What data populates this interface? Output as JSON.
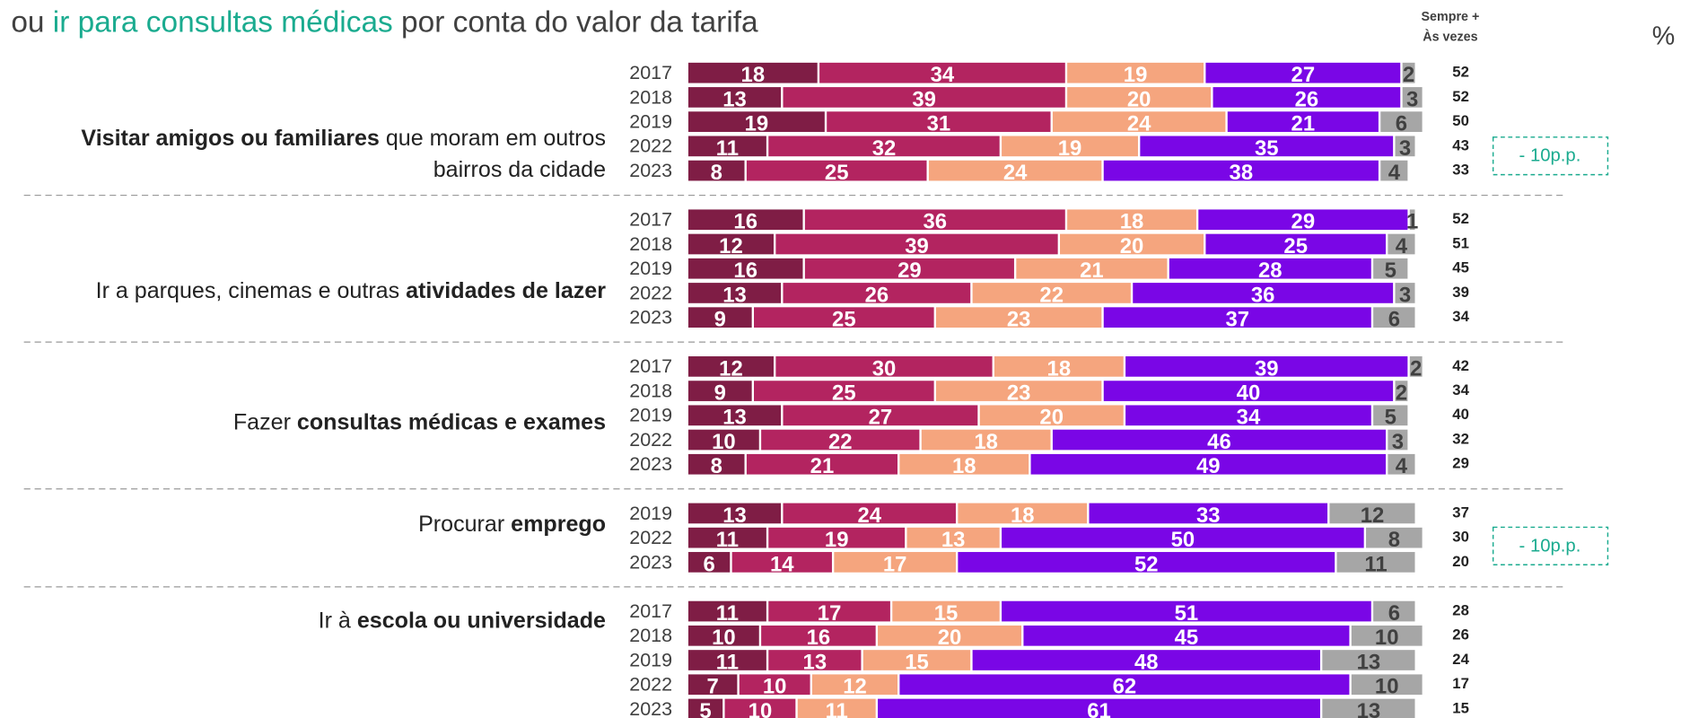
{
  "chart_data": {
    "type": "bar",
    "title": [
      "ou ",
      "ir para consultas médicas",
      " por conta do valor da tarifa"
    ],
    "title_color": "#404040",
    "title_highlight_color": "#1aab8f",
    "column_header": [
      "Sempre +",
      "Às vezes"
    ],
    "unit": "%",
    "colors": [
      "#7f1d45",
      "#b32460",
      "#f5a57e",
      "#7a06e6",
      "#a6a6a6"
    ],
    "groups": [
      {
        "label": [
          [
            {
              "text": "Visitar amigos ou familiares",
              "bold": true
            },
            {
              "text": " que moram em outros",
              "bold": false
            }
          ],
          [
            {
              "text": "bairros da cidade",
              "bold": false
            }
          ]
        ],
        "categories": [
          "2017",
          "2018",
          "2019",
          "2022",
          "2023"
        ],
        "values": [
          [
            18,
            34,
            19,
            27,
            2
          ],
          [
            13,
            39,
            20,
            26,
            3
          ],
          [
            19,
            31,
            24,
            21,
            6
          ],
          [
            11,
            32,
            19,
            35,
            3
          ],
          [
            8,
            25,
            24,
            38,
            4
          ]
        ],
        "totals": [
          52,
          52,
          50,
          43,
          33
        ],
        "annotation": "- 10p.p."
      },
      {
        "label": [
          [
            {
              "text": "Ir a parques, cinemas e outras ",
              "bold": false
            },
            {
              "text": "atividades de lazer",
              "bold": true
            }
          ]
        ],
        "categories": [
          "2017",
          "2018",
          "2019",
          "2022",
          "2023"
        ],
        "values": [
          [
            16,
            36,
            18,
            29,
            1
          ],
          [
            12,
            39,
            20,
            25,
            4
          ],
          [
            16,
            29,
            21,
            28,
            5
          ],
          [
            13,
            26,
            22,
            36,
            3
          ],
          [
            9,
            25,
            23,
            37,
            6
          ]
        ],
        "totals": [
          52,
          51,
          45,
          39,
          34
        ]
      },
      {
        "label": [
          [
            {
              "text": "Fazer ",
              "bold": false
            },
            {
              "text": "consultas médicas e exames",
              "bold": true
            }
          ]
        ],
        "categories": [
          "2017",
          "2018",
          "2019",
          "2022",
          "2023"
        ],
        "values": [
          [
            12,
            30,
            18,
            39,
            2
          ],
          [
            9,
            25,
            23,
            40,
            2
          ],
          [
            13,
            27,
            20,
            34,
            5
          ],
          [
            10,
            22,
            18,
            46,
            3
          ],
          [
            8,
            21,
            18,
            49,
            4
          ]
        ],
        "totals": [
          42,
          34,
          40,
          32,
          29
        ]
      },
      {
        "label": [
          [
            {
              "text": "Procurar ",
              "bold": false
            },
            {
              "text": "emprego",
              "bold": true
            }
          ]
        ],
        "categories": [
          "2019",
          "2022",
          "2023"
        ],
        "values": [
          [
            13,
            24,
            18,
            33,
            12
          ],
          [
            11,
            19,
            13,
            50,
            8
          ],
          [
            6,
            14,
            17,
            52,
            11
          ]
        ],
        "totals": [
          37,
          30,
          20
        ],
        "annotation": "- 10p.p."
      },
      {
        "label": [
          [
            {
              "text": "Ir à ",
              "bold": false
            },
            {
              "text": "escola ou universidade",
              "bold": true
            }
          ]
        ],
        "categories": [
          "2017",
          "2018",
          "2019",
          "2022",
          "2023"
        ],
        "values": [
          [
            11,
            17,
            15,
            51,
            6
          ],
          [
            10,
            16,
            20,
            45,
            10
          ],
          [
            11,
            13,
            15,
            48,
            13
          ],
          [
            7,
            10,
            12,
            62,
            10
          ],
          [
            5,
            10,
            11,
            61,
            13
          ]
        ],
        "totals": [
          28,
          26,
          24,
          17,
          15
        ]
      }
    ]
  }
}
